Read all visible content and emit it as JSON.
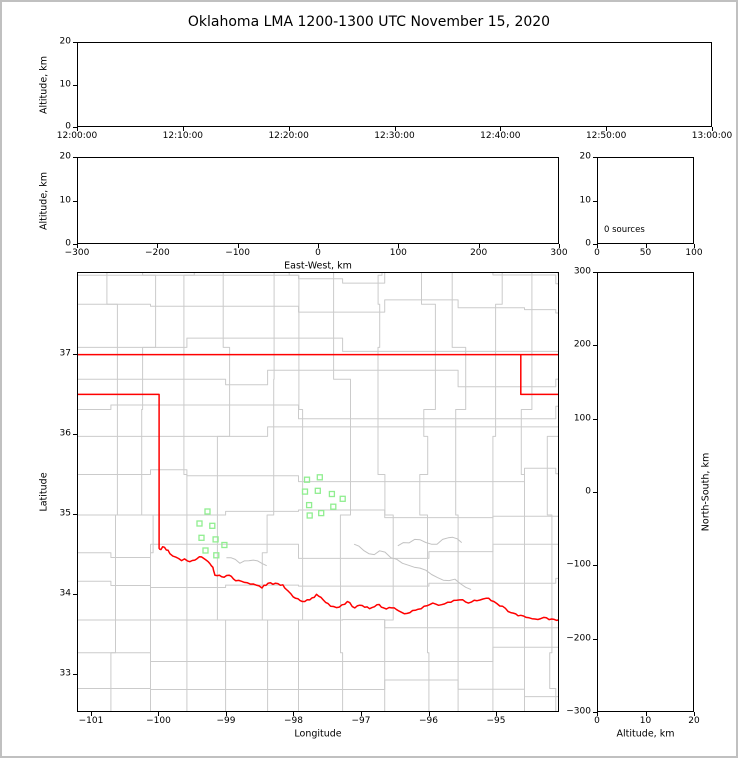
{
  "figure": {
    "title": "Oklahoma LMA 1200-1300 UTC November 15, 2020",
    "background": "#ffffff",
    "frame_color": "#c0c0c0"
  },
  "style": {
    "axis_color": "#000000",
    "text_color": "#000000",
    "county_line_color": "#cbcbcb",
    "river_line_color": "#c2c2c2",
    "state_line_color": "#ff0000",
    "station_marker_color": "#90EE90"
  },
  "chart_data": [
    {
      "id": "time-height",
      "type": "scatter",
      "description": "Altitude vs time panel; no lightning sources plotted",
      "x": {
        "range": [
          0,
          3600
        ],
        "label": "",
        "ticks": [
          {
            "v": 0,
            "label": "12:00:00"
          },
          {
            "v": 600,
            "label": "12:10:00"
          },
          {
            "v": 1200,
            "label": "12:20:00"
          },
          {
            "v": 1800,
            "label": "12:30:00"
          },
          {
            "v": 2400,
            "label": "12:40:00"
          },
          {
            "v": 3000,
            "label": "12:50:00"
          },
          {
            "v": 3600,
            "label": "13:00:00"
          }
        ]
      },
      "y": {
        "range": [
          0,
          20
        ],
        "label": "Altitude, km",
        "ticks": [
          {
            "v": 0,
            "label": "0"
          },
          {
            "v": 10,
            "label": "10"
          },
          {
            "v": 20,
            "label": "20"
          }
        ]
      },
      "points": []
    },
    {
      "id": "ew-height",
      "type": "scatter",
      "description": "Altitude vs east-west distance; no sources plotted",
      "x": {
        "range": [
          -300,
          300
        ],
        "label": "East-West, km",
        "ticks": [
          {
            "v": -300,
            "label": "−300"
          },
          {
            "v": -200,
            "label": "−200"
          },
          {
            "v": -100,
            "label": "−100"
          },
          {
            "v": 0,
            "label": "0"
          },
          {
            "v": 100,
            "label": "100"
          },
          {
            "v": 200,
            "label": "200"
          },
          {
            "v": 300,
            "label": "300"
          }
        ]
      },
      "y": {
        "range": [
          0,
          20
        ],
        "label": "Altitude, km",
        "ticks": [
          {
            "v": 0,
            "label": "0"
          },
          {
            "v": 10,
            "label": "10"
          },
          {
            "v": 20,
            "label": "20"
          }
        ]
      },
      "points": []
    },
    {
      "id": "source-histogram",
      "type": "line",
      "description": "Altitude histogram of source counts; empty",
      "annotation": "0 sources",
      "x": {
        "range": [
          0,
          100
        ],
        "label": "",
        "ticks": [
          {
            "v": 0,
            "label": "0"
          },
          {
            "v": 50,
            "label": "50"
          },
          {
            "v": 100,
            "label": "100"
          }
        ]
      },
      "y": {
        "range": [
          0,
          20
        ],
        "label": "",
        "ticks": [
          {
            "v": 0,
            "label": "0"
          },
          {
            "v": 10,
            "label": "10"
          },
          {
            "v": 20,
            "label": "20"
          }
        ]
      },
      "points": []
    },
    {
      "id": "plan-view",
      "type": "scatter",
      "description": "Plan-view map of Oklahoma with county lines, red state borders and green LMA station squares",
      "x": {
        "range": [
          -101.207,
          -94.067
        ],
        "label": "Longitude",
        "ticks": [
          {
            "v": -101,
            "label": "−101"
          },
          {
            "v": -100,
            "label": "−100"
          },
          {
            "v": -99,
            "label": "−99"
          },
          {
            "v": -98,
            "label": "−98"
          },
          {
            "v": -97,
            "label": "−97"
          },
          {
            "v": -96,
            "label": "−96"
          },
          {
            "v": -95,
            "label": "−95"
          }
        ]
      },
      "y": {
        "range": [
          32.525,
          38.025
        ],
        "label": "Latitude",
        "ticks": [
          {
            "v": 33,
            "label": "33"
          },
          {
            "v": 34,
            "label": "34"
          },
          {
            "v": 35,
            "label": "35"
          },
          {
            "v": 36,
            "label": "36"
          },
          {
            "v": 37,
            "label": "37"
          }
        ]
      },
      "stations": [
        [
          -97.8,
          35.43
        ],
        [
          -97.61,
          35.46
        ],
        [
          -97.83,
          35.28
        ],
        [
          -97.64,
          35.29
        ],
        [
          -97.43,
          35.25
        ],
        [
          -97.27,
          35.19
        ],
        [
          -97.77,
          35.11
        ],
        [
          -97.59,
          35.01
        ],
        [
          -97.76,
          34.98
        ],
        [
          -97.41,
          35.09
        ],
        [
          -99.28,
          35.03
        ],
        [
          -99.4,
          34.88
        ],
        [
          -99.21,
          34.85
        ],
        [
          -99.37,
          34.7
        ],
        [
          -99.16,
          34.68
        ],
        [
          -99.03,
          34.61
        ],
        [
          -99.31,
          34.54
        ],
        [
          -99.15,
          34.48
        ]
      ],
      "state_lines": [
        {
          "name": "kansas-oklahoma-border",
          "points": [
            [
              -101.21,
              37.0
            ],
            [
              -94.06,
              37.0
            ]
          ]
        },
        {
          "name": "texas-panhandle-border",
          "points": [
            [
              -101.21,
              36.5
            ],
            [
              -100.0,
              36.5
            ],
            [
              -100.0,
              34.56
            ]
          ]
        },
        {
          "name": "missouri-arkansas-border",
          "points": [
            [
              -94.62,
              37.0
            ],
            [
              -94.62,
              36.5
            ],
            [
              -94.06,
              36.5
            ]
          ]
        },
        {
          "name": "red-river-border",
          "points": [
            [
              -100.0,
              34.56
            ],
            [
              -99.92,
              34.58
            ],
            [
              -99.84,
              34.5
            ],
            [
              -99.71,
              34.44
            ],
            [
              -99.58,
              34.41
            ],
            [
              -99.47,
              34.42
            ],
            [
              -99.37,
              34.46
            ],
            [
              -99.27,
              34.4
            ],
            [
              -99.2,
              34.33
            ],
            [
              -99.17,
              34.23
            ],
            [
              -99.07,
              34.21
            ],
            [
              -98.96,
              34.23
            ],
            [
              -98.86,
              34.16
            ],
            [
              -98.73,
              34.14
            ],
            [
              -98.6,
              34.12
            ],
            [
              -98.47,
              34.07
            ],
            [
              -98.38,
              34.13
            ],
            [
              -98.27,
              34.13
            ],
            [
              -98.16,
              34.11
            ],
            [
              -98.08,
              34.03
            ],
            [
              -97.97,
              33.94
            ],
            [
              -97.87,
              33.9
            ],
            [
              -97.76,
              33.92
            ],
            [
              -97.66,
              33.99
            ],
            [
              -97.56,
              33.92
            ],
            [
              -97.45,
              33.84
            ],
            [
              -97.32,
              33.83
            ],
            [
              -97.2,
              33.9
            ],
            [
              -97.09,
              33.82
            ],
            [
              -96.98,
              33.85
            ],
            [
              -96.87,
              33.81
            ],
            [
              -96.76,
              33.86
            ],
            [
              -96.66,
              33.82
            ],
            [
              -96.54,
              33.82
            ],
            [
              -96.43,
              33.78
            ],
            [
              -96.31,
              33.75
            ],
            [
              -96.19,
              33.79
            ],
            [
              -96.06,
              33.84
            ],
            [
              -95.93,
              33.88
            ],
            [
              -95.8,
              33.86
            ],
            [
              -95.66,
              33.89
            ],
            [
              -95.53,
              33.92
            ],
            [
              -95.4,
              33.88
            ],
            [
              -95.27,
              33.91
            ],
            [
              -95.14,
              33.94
            ],
            [
              -95.02,
              33.9
            ],
            [
              -94.89,
              33.84
            ],
            [
              -94.77,
              33.76
            ],
            [
              -94.66,
              33.72
            ],
            [
              -94.54,
              33.7
            ],
            [
              -94.41,
              33.68
            ],
            [
              -94.28,
              33.7
            ],
            [
              -94.16,
              33.68
            ],
            [
              -94.05,
              33.67
            ]
          ]
        }
      ],
      "rivers": [
        [
          [
            -97.1,
            34.62
          ],
          [
            -96.88,
            34.5
          ],
          [
            -96.64,
            34.52
          ],
          [
            -96.38,
            34.38
          ],
          [
            -96.12,
            34.32
          ],
          [
            -95.86,
            34.2
          ],
          [
            -95.6,
            34.18
          ],
          [
            -95.36,
            34.05
          ]
        ],
        [
          [
            -96.45,
            34.6
          ],
          [
            -96.2,
            34.68
          ],
          [
            -95.95,
            34.62
          ],
          [
            -95.7,
            34.7
          ],
          [
            -95.5,
            34.64
          ]
        ],
        [
          [
            -99.0,
            34.45
          ],
          [
            -98.8,
            34.38
          ],
          [
            -98.6,
            34.42
          ],
          [
            -98.4,
            34.35
          ]
        ]
      ]
    },
    {
      "id": "ns-height",
      "type": "scatter",
      "description": "North-south distance vs altitude; no sources plotted",
      "x": {
        "range": [
          0,
          20
        ],
        "label": "Altitude, km",
        "ticks": [
          {
            "v": 0,
            "label": "0"
          },
          {
            "v": 10,
            "label": "10"
          },
          {
            "v": 20,
            "label": "20"
          }
        ]
      },
      "y": {
        "range": [
          -300,
          300
        ],
        "label": "North-South, km",
        "label_side": "right",
        "ticks": [
          {
            "v": -300,
            "label": "−300"
          },
          {
            "v": -200,
            "label": "−200"
          },
          {
            "v": -100,
            "label": "−100"
          },
          {
            "v": 0,
            "label": "0"
          },
          {
            "v": 100,
            "label": "100"
          },
          {
            "v": 200,
            "label": "200"
          },
          {
            "v": 300,
            "label": "300"
          }
        ]
      },
      "points": []
    }
  ]
}
